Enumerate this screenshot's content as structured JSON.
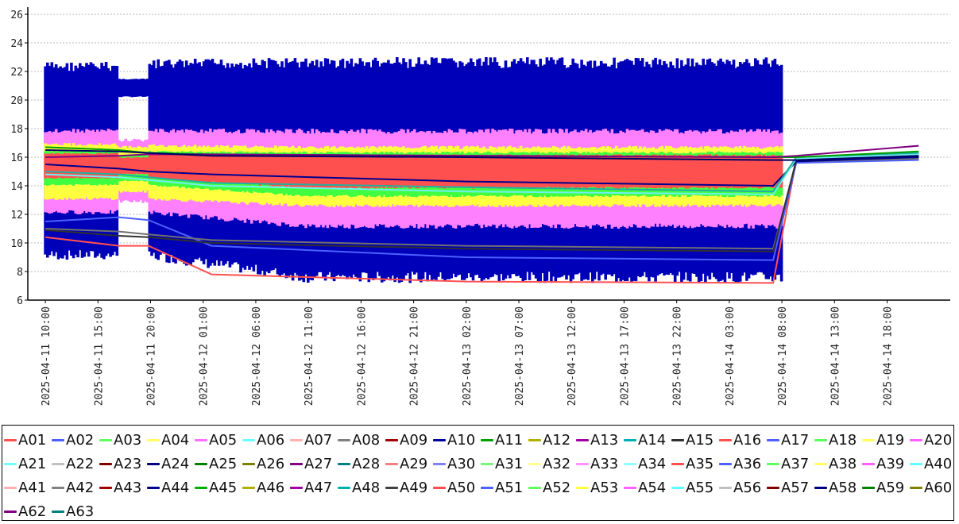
{
  "chart_data": {
    "type": "line",
    "title": "",
    "xlabel": "",
    "ylabel": "",
    "ylim": [
      6,
      26.5
    ],
    "y_ticks": [
      6,
      8,
      10,
      12,
      14,
      16,
      18,
      20,
      22,
      24,
      26
    ],
    "x_tick_labels": [
      "2025-04-11 10:00",
      "2025-04-11 15:00",
      "2025-04-11 20:00",
      "2025-04-12 01:00",
      "2025-04-12 06:00",
      "2025-04-12 11:00",
      "2025-04-12 16:00",
      "2025-04-12 21:00",
      "2025-04-13 02:00",
      "2025-04-13 07:00",
      "2025-04-13 12:00",
      "2025-04-13 17:00",
      "2025-04-13 22:00",
      "2025-04-14 03:00",
      "2025-04-14 08:00",
      "2025-04-14 13:00",
      "2025-04-14 18:00"
    ],
    "x_range": [
      "2025-04-11 08:20",
      "2025-04-15 00:00"
    ],
    "grid": "horizontal dashed",
    "legend_placement": "bottom",
    "bands": [
      {
        "name": "A44",
        "color": "#0000b8",
        "seg1": [
          8.8,
          22.7
        ],
        "gap": [
          20.2,
          21.5
        ],
        "seg2": [
          7.2,
          23.0
        ]
      },
      {
        "name": "A05",
        "color": "#ff80ff",
        "seg1": [
          12.0,
          18.0
        ],
        "gap": [
          12.8,
          17.3
        ],
        "seg2": [
          11.0,
          18.0
        ]
      },
      {
        "name": "A04",
        "color": "#ffff40",
        "seg1": [
          13.0,
          17.0
        ],
        "gap": [
          13.5,
          16.8
        ],
        "seg2": [
          12.5,
          16.8
        ]
      },
      {
        "name": "A03",
        "color": "#40ff40",
        "seg1": [
          14.0,
          16.5
        ],
        "gap": [
          14.3,
          16.2
        ],
        "seg2": [
          13.2,
          16.4
        ]
      },
      {
        "name": "A01",
        "color": "#ff5050",
        "seg1": [
          14.5,
          16.3
        ],
        "gap": [
          14.8,
          16.0
        ],
        "seg2": [
          13.8,
          16.2
        ]
      }
    ],
    "series": [
      {
        "name": "A01",
        "color": "#ff5050",
        "values": [
          10.4,
          9.8,
          9.8,
          7.8,
          7.3,
          7.2,
          15.8,
          15.9
        ]
      },
      {
        "name": "A02",
        "color": "#4c60ff",
        "values": [
          11.5,
          11.8,
          11.6,
          9.8,
          9.0,
          8.8,
          15.6,
          15.8
        ]
      },
      {
        "name": "A08",
        "color": "#707070",
        "values": [
          11.0,
          10.8,
          10.6,
          10.2,
          9.8,
          9.6,
          15.7,
          15.9
        ]
      },
      {
        "name": "A15",
        "color": "#303030",
        "values": [
          10.9,
          10.5,
          10.4,
          10.0,
          9.6,
          9.4,
          15.8,
          16.0
        ]
      },
      {
        "name": "A10",
        "color": "#00008b",
        "values": [
          15.5,
          15.2,
          15.0,
          14.8,
          14.3,
          14.0,
          15.7,
          16.0
        ]
      },
      {
        "name": "A06",
        "color": "#70f0f0",
        "values": [
          14.8,
          14.6,
          14.4,
          14.0,
          13.6,
          13.4,
          15.9,
          16.2
        ]
      },
      {
        "name": "A14",
        "color": "#20b0a0",
        "values": [
          15.0,
          14.8,
          14.6,
          14.2,
          13.9,
          13.6,
          16.0,
          16.3
        ]
      },
      {
        "name": "A11",
        "color": "#00a000",
        "values": [
          16.7,
          16.5,
          16.3,
          16.2,
          16.1,
          16.0,
          16.0,
          16.4
        ]
      },
      {
        "name": "A27",
        "color": "#800080",
        "values": [
          16.0,
          16.1,
          16.2,
          16.2,
          16.1,
          16.0,
          16.1,
          16.8
        ]
      },
      {
        "name": "A24",
        "color": "#000066",
        "values": [
          16.5,
          16.4,
          16.3,
          16.1,
          16.0,
          15.8,
          15.8,
          16.1
        ]
      }
    ],
    "legend": [
      {
        "name": "A01",
        "color": "#ff5050"
      },
      {
        "name": "A02",
        "color": "#4c60ff"
      },
      {
        "name": "A03",
        "color": "#60ff60"
      },
      {
        "name": "A04",
        "color": "#ffff60"
      },
      {
        "name": "A05",
        "color": "#ff70ff"
      },
      {
        "name": "A06",
        "color": "#70ffff"
      },
      {
        "name": "A07",
        "color": "#ffb0b0"
      },
      {
        "name": "A08",
        "color": "#808080"
      },
      {
        "name": "A09",
        "color": "#a00000"
      },
      {
        "name": "A10",
        "color": "#0000a0"
      },
      {
        "name": "A11",
        "color": "#00a000"
      },
      {
        "name": "A12",
        "color": "#b0b000"
      },
      {
        "name": "A13",
        "color": "#a000a0"
      },
      {
        "name": "A14",
        "color": "#00b0b0"
      },
      {
        "name": "A15",
        "color": "#303030"
      },
      {
        "name": "A16",
        "color": "#ff5050"
      },
      {
        "name": "A17",
        "color": "#4c60ff"
      },
      {
        "name": "A18",
        "color": "#60ff60"
      },
      {
        "name": "A19",
        "color": "#ffff60"
      },
      {
        "name": "A20",
        "color": "#ff60ff"
      },
      {
        "name": "A21",
        "color": "#70ffff"
      },
      {
        "name": "A22",
        "color": "#c0c0c0"
      },
      {
        "name": "A23",
        "color": "#800000"
      },
      {
        "name": "A24",
        "color": "#000080"
      },
      {
        "name": "A25",
        "color": "#008000"
      },
      {
        "name": "A26",
        "color": "#808000"
      },
      {
        "name": "A27",
        "color": "#800080"
      },
      {
        "name": "A28",
        "color": "#008080"
      },
      {
        "name": "A29",
        "color": "#f08080"
      },
      {
        "name": "A30",
        "color": "#8080f0"
      },
      {
        "name": "A31",
        "color": "#80f080"
      },
      {
        "name": "A32",
        "color": "#ffff90"
      },
      {
        "name": "A33",
        "color": "#ff90ff"
      },
      {
        "name": "A34",
        "color": "#90ffff"
      },
      {
        "name": "A35",
        "color": "#ff5050"
      },
      {
        "name": "A36",
        "color": "#4c60ff"
      },
      {
        "name": "A37",
        "color": "#60ff60"
      },
      {
        "name": "A38",
        "color": "#ffff60"
      },
      {
        "name": "A39",
        "color": "#ff60ff"
      },
      {
        "name": "A40",
        "color": "#60ffff"
      },
      {
        "name": "A41",
        "color": "#ffb0b0"
      },
      {
        "name": "A42",
        "color": "#808080"
      },
      {
        "name": "A43",
        "color": "#a00000"
      },
      {
        "name": "A44",
        "color": "#000090"
      },
      {
        "name": "A45",
        "color": "#00b000"
      },
      {
        "name": "A46",
        "color": "#b0b000"
      },
      {
        "name": "A47",
        "color": "#a000a0"
      },
      {
        "name": "A48",
        "color": "#00b0b0"
      },
      {
        "name": "A49",
        "color": "#404040"
      },
      {
        "name": "A50",
        "color": "#ff5050"
      },
      {
        "name": "A51",
        "color": "#4c60ff"
      },
      {
        "name": "A52",
        "color": "#60ff60"
      },
      {
        "name": "A53",
        "color": "#ffff40"
      },
      {
        "name": "A54",
        "color": "#ff60ff"
      },
      {
        "name": "A55",
        "color": "#60ffff"
      },
      {
        "name": "A56",
        "color": "#c0c0c0"
      },
      {
        "name": "A57",
        "color": "#800000"
      },
      {
        "name": "A58",
        "color": "#000080"
      },
      {
        "name": "A59",
        "color": "#008000"
      },
      {
        "name": "A60",
        "color": "#808000"
      },
      {
        "name": "A62",
        "color": "#800080"
      },
      {
        "name": "A63",
        "color": "#008080"
      }
    ]
  }
}
